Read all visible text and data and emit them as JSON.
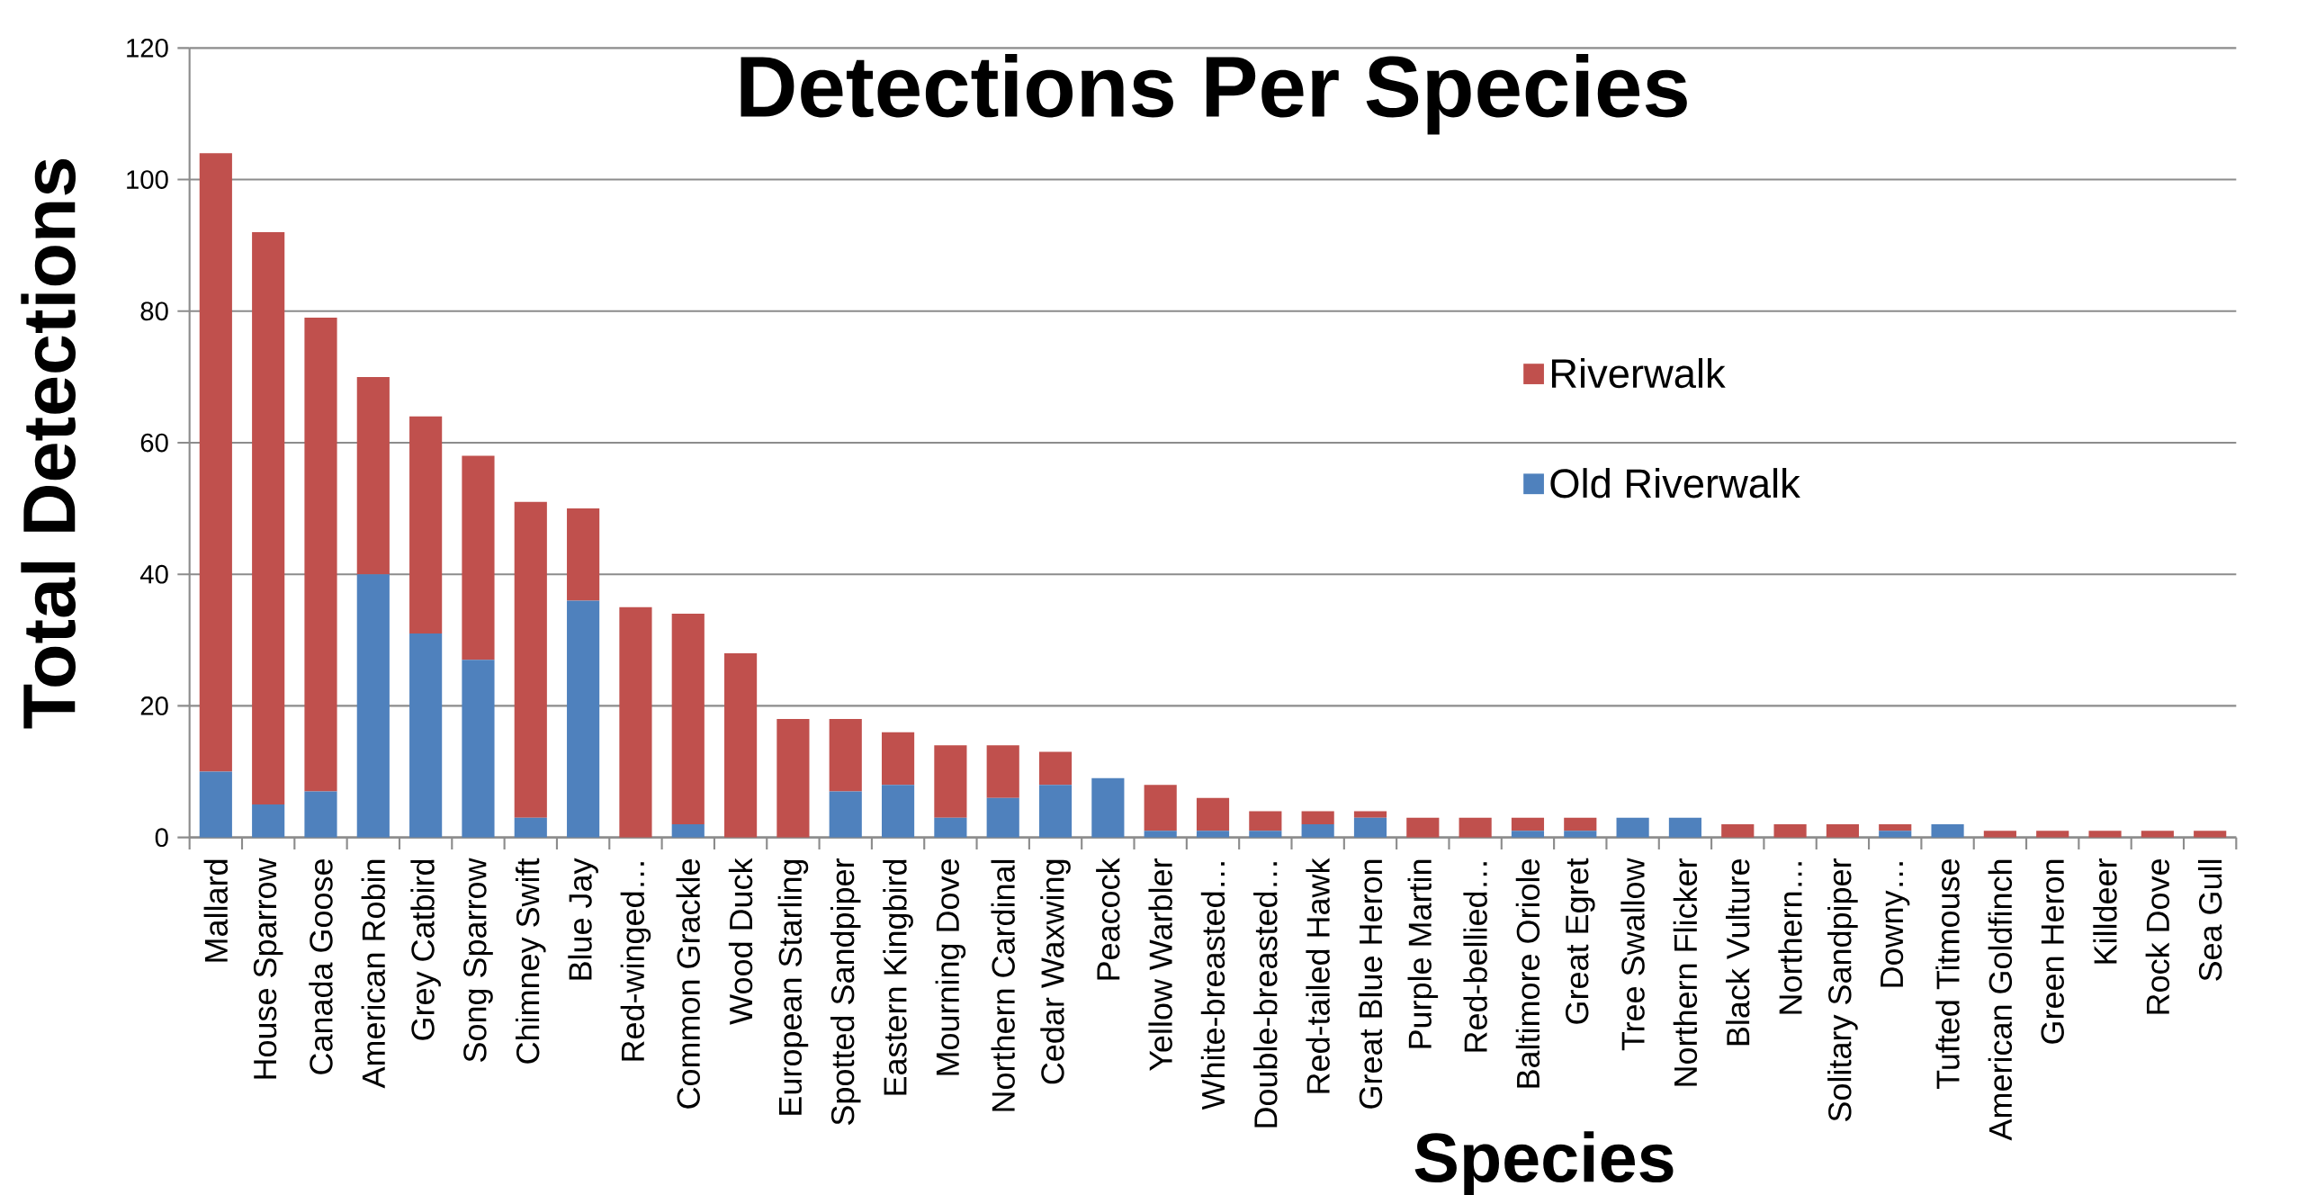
{
  "chart_data": {
    "type": "bar",
    "stacked": true,
    "title": "Detections Per Species",
    "xlabel": "Species",
    "ylabel": "Total Detections",
    "categories": [
      "Mallard",
      "House Sparrow",
      "Canada Goose",
      "American Robin",
      "Grey Catbird",
      "Song Sparrow",
      "Chimney Swift",
      "Blue Jay",
      "Red-winged…",
      "Common Grackle",
      "Wood Duck",
      "European Starling",
      "Spotted Sandpiper",
      "Eastern Kingbird",
      "Mourning Dove",
      "Northern Cardinal",
      "Cedar Waxwing",
      "Peacock",
      "Yellow Warbler",
      "White-breasted…",
      "Double-breasted…",
      "Red-tailed Hawk",
      "Great Blue Heron",
      "Purple Martin",
      "Red-bellied…",
      "Baltimore Oriole",
      "Great Egret",
      "Tree Swallow",
      "Northern Flicker",
      "Black Vulture",
      "Northern…",
      "Solitary Sandpiper",
      "Downy…",
      "Tufted Titmouse",
      "American Goldfinch",
      "Green Heron",
      "Killdeer",
      "Rock Dove",
      "Sea Gull"
    ],
    "series": [
      {
        "name": "Old Riverwalk",
        "color": "#4f81bd",
        "values": [
          10,
          5,
          7,
          40,
          31,
          27,
          3,
          36,
          0,
          2,
          0,
          0,
          7,
          8,
          3,
          6,
          8,
          9,
          1,
          1,
          1,
          2,
          3,
          0,
          0,
          1,
          1,
          3,
          3,
          0,
          0,
          0,
          1,
          2,
          0,
          0,
          0,
          0,
          0
        ]
      },
      {
        "name": "Riverwalk",
        "color": "#c0504d",
        "values": [
          94,
          87,
          72,
          30,
          33,
          31,
          48,
          14,
          35,
          32,
          28,
          18,
          11,
          8,
          11,
          8,
          5,
          0,
          7,
          5,
          3,
          2,
          1,
          3,
          3,
          2,
          2,
          0,
          0,
          2,
          2,
          2,
          1,
          0,
          1,
          1,
          1,
          1,
          1
        ]
      }
    ],
    "ylim": [
      0,
      120
    ],
    "yticks": [
      0,
      20,
      40,
      60,
      80,
      100,
      120
    ],
    "grid": "y",
    "legend": "right"
  }
}
